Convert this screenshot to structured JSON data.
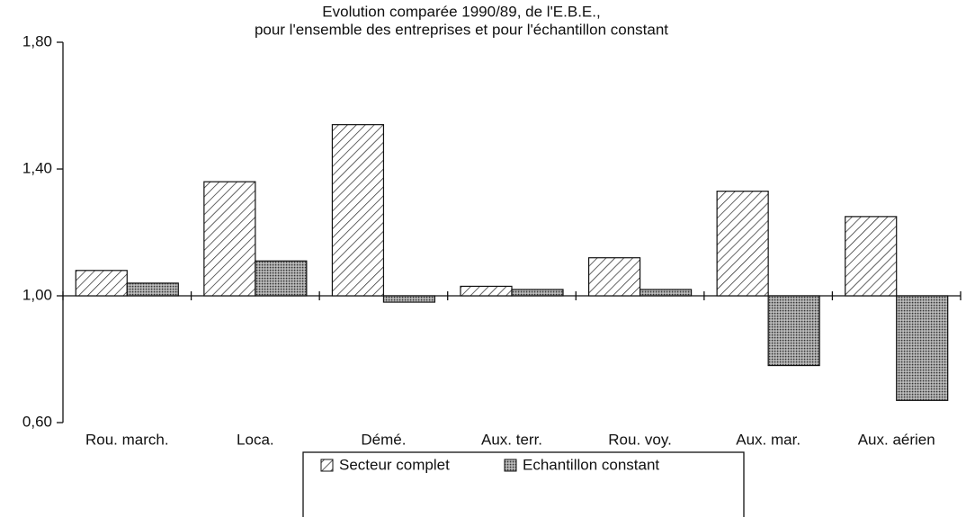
{
  "chart_data": {
    "type": "bar",
    "title": [
      "Evolution comparée 1990/89, de l'E.B.E.,",
      "pour l'ensemble des entreprises et pour l'échantillon constant"
    ],
    "categories": [
      "Rou. march.",
      "Loca.",
      "Démé.",
      "Aux. terr.",
      "Rou. voy.",
      "Aux. mar.",
      "Aux. aérien"
    ],
    "series": [
      {
        "name": "Secteur complet",
        "pattern": "hatch",
        "values": [
          1.08,
          1.36,
          1.54,
          1.03,
          1.12,
          1.33,
          1.25
        ]
      },
      {
        "name": "Echantillon constant",
        "pattern": "dots",
        "values": [
          1.04,
          1.11,
          0.98,
          1.02,
          1.02,
          0.78,
          0.67
        ]
      }
    ],
    "ylim": [
      0.6,
      1.8
    ],
    "yticks": [
      {
        "value": 0.6,
        "label": "0,60"
      },
      {
        "value": 1.0,
        "label": "1,00"
      },
      {
        "value": 1.4,
        "label": "1,40"
      },
      {
        "value": 1.8,
        "label": "1,80"
      }
    ],
    "baseline": 1.0,
    "legend": "bottom"
  }
}
